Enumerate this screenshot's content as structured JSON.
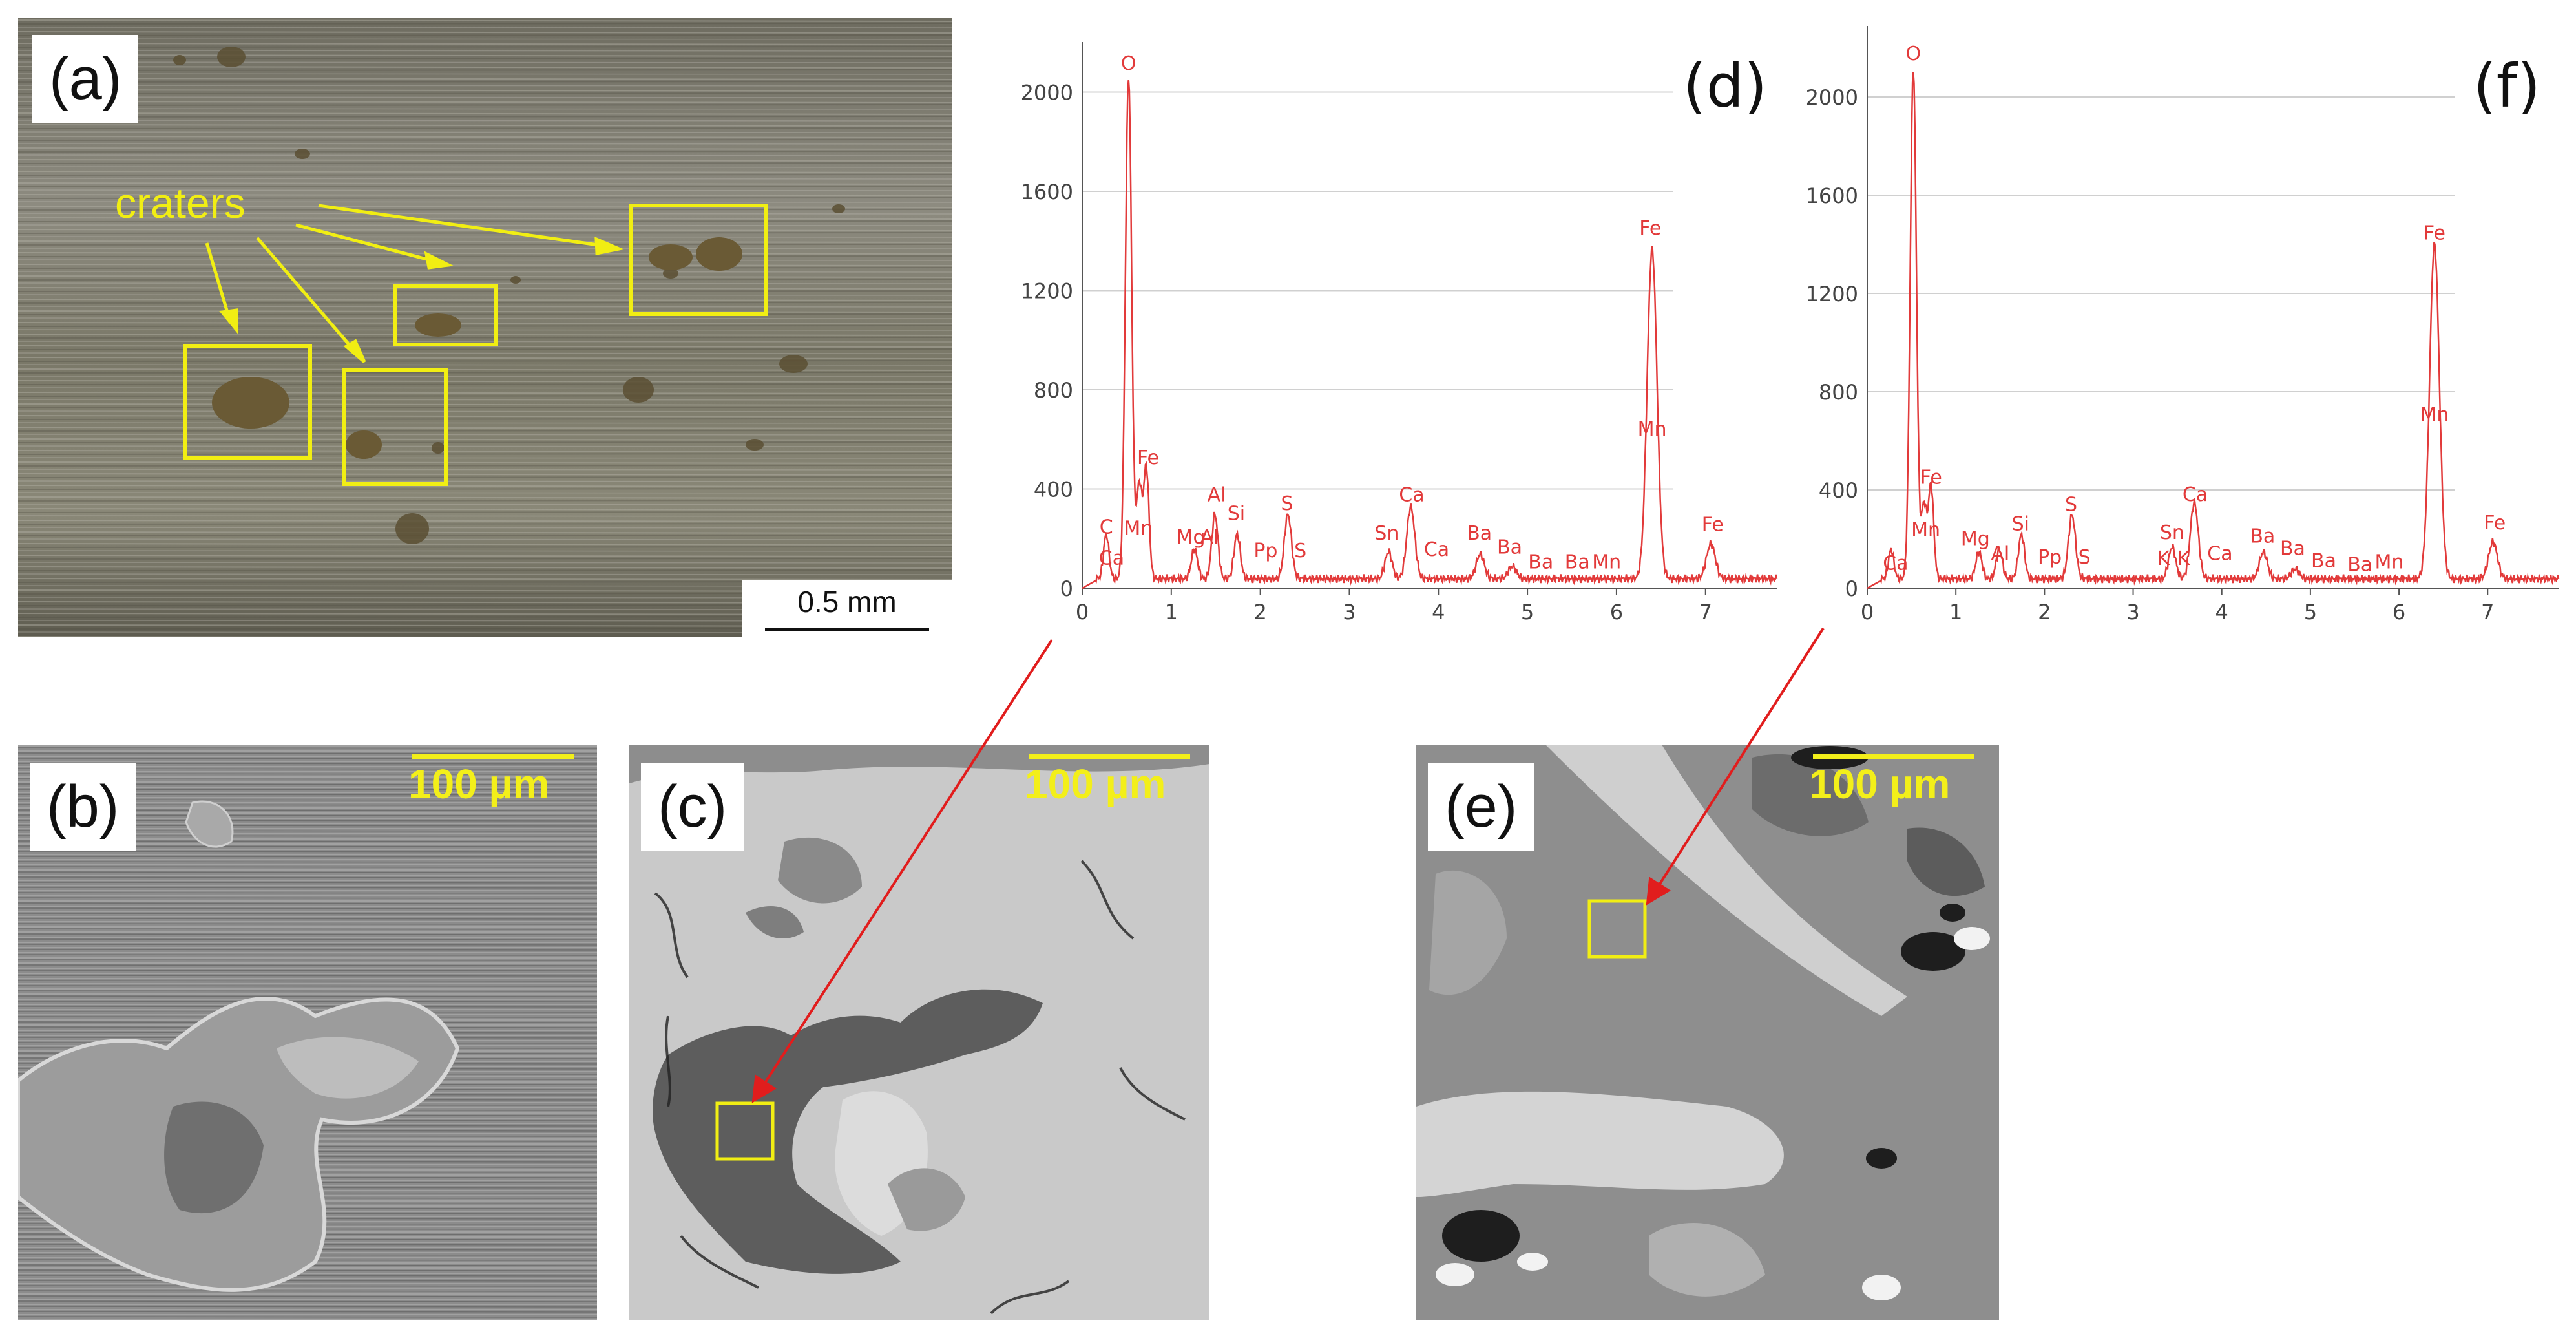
{
  "figure": {
    "panel_a": {
      "label": "(a)",
      "annotation": "craters",
      "scalebar": "0.5 mm",
      "colors": {
        "boxes": "#f1ee13",
        "annotation": "#f1ee13"
      }
    },
    "panel_b": {
      "label": "(b)",
      "scalebar": "100 µm"
    },
    "panel_c": {
      "label": "(c)",
      "scalebar": "100 µm"
    },
    "panel_e": {
      "label": "(e)",
      "scalebar": "100 µm"
    }
  },
  "chart_data": [
    {
      "type": "line",
      "panel_label": "(d)",
      "color": "#e23a3a",
      "xlim": [
        0,
        7.8
      ],
      "ylim": [
        0,
        2150
      ],
      "xticks": [
        0,
        1,
        2,
        3,
        4,
        5,
        6,
        7
      ],
      "yticks": [
        0,
        400,
        800,
        1200,
        1600,
        2000
      ],
      "peaks": [
        {
          "x": 0.27,
          "y": 180,
          "w": 0.03
        },
        {
          "x": 0.52,
          "y": 2030,
          "w": 0.035
        },
        {
          "x": 0.64,
          "y": 380,
          "w": 0.03
        },
        {
          "x": 0.72,
          "y": 450,
          "w": 0.03
        },
        {
          "x": 1.26,
          "y": 120,
          "w": 0.035
        },
        {
          "x": 1.49,
          "y": 260,
          "w": 0.035
        },
        {
          "x": 1.74,
          "y": 180,
          "w": 0.035
        },
        {
          "x": 2.31,
          "y": 260,
          "w": 0.04
        },
        {
          "x": 3.44,
          "y": 110,
          "w": 0.04
        },
        {
          "x": 3.69,
          "y": 290,
          "w": 0.045
        },
        {
          "x": 4.47,
          "y": 100,
          "w": 0.045
        },
        {
          "x": 4.83,
          "y": 50,
          "w": 0.045
        },
        {
          "x": 6.4,
          "y": 1330,
          "w": 0.055
        },
        {
          "x": 7.06,
          "y": 140,
          "w": 0.05
        }
      ],
      "labels": [
        {
          "text": "O",
          "x": 0.52,
          "y": 2090
        },
        {
          "text": "C",
          "x": 0.27,
          "y": 220
        },
        {
          "text": "Ca",
          "x": 0.33,
          "y": 95
        },
        {
          "text": "Mn",
          "x": 0.63,
          "y": 215
        },
        {
          "text": "Fe",
          "x": 0.74,
          "y": 500
        },
        {
          "text": "Mg",
          "x": 1.22,
          "y": 180
        },
        {
          "text": "Al",
          "x": 1.51,
          "y": 350
        },
        {
          "text": "Al",
          "x": 1.43,
          "y": 180
        },
        {
          "text": "Si",
          "x": 1.73,
          "y": 275
        },
        {
          "text": "Pp",
          "x": 2.06,
          "y": 125
        },
        {
          "text": "S",
          "x": 2.3,
          "y": 315
        },
        {
          "text": "S",
          "x": 2.45,
          "y": 125
        },
        {
          "text": "Sn",
          "x": 3.42,
          "y": 195
        },
        {
          "text": "Ca",
          "x": 3.7,
          "y": 350
        },
        {
          "text": "Ca",
          "x": 3.98,
          "y": 130
        },
        {
          "text": "Ba",
          "x": 4.46,
          "y": 195
        },
        {
          "text": "Ba",
          "x": 4.8,
          "y": 140
        },
        {
          "text": "Ba",
          "x": 5.15,
          "y": 80
        },
        {
          "text": "Ba",
          "x": 5.56,
          "y": 80
        },
        {
          "text": "Mn",
          "x": 5.89,
          "y": 80
        },
        {
          "text": "Fe",
          "x": 6.38,
          "y": 1425
        },
        {
          "text": "Mn",
          "x": 6.4,
          "y": 615
        },
        {
          "text": "Fe",
          "x": 7.08,
          "y": 230
        }
      ]
    },
    {
      "type": "line",
      "panel_label": "(f)",
      "color": "#e23a3a",
      "xlim": [
        0,
        7.8
      ],
      "ylim": [
        0,
        2250
      ],
      "xticks": [
        0,
        1,
        2,
        3,
        4,
        5,
        6,
        7
      ],
      "yticks": [
        0,
        400,
        800,
        1200,
        1600,
        2000
      ],
      "peaks": [
        {
          "x": 0.27,
          "y": 120,
          "w": 0.03
        },
        {
          "x": 0.52,
          "y": 2080,
          "w": 0.035
        },
        {
          "x": 0.64,
          "y": 300,
          "w": 0.03
        },
        {
          "x": 0.72,
          "y": 380,
          "w": 0.03
        },
        {
          "x": 1.26,
          "y": 110,
          "w": 0.035
        },
        {
          "x": 1.49,
          "y": 120,
          "w": 0.035
        },
        {
          "x": 1.74,
          "y": 180,
          "w": 0.035
        },
        {
          "x": 2.31,
          "y": 260,
          "w": 0.04
        },
        {
          "x": 3.44,
          "y": 130,
          "w": 0.04
        },
        {
          "x": 3.69,
          "y": 310,
          "w": 0.045
        },
        {
          "x": 4.47,
          "y": 110,
          "w": 0.045
        },
        {
          "x": 4.83,
          "y": 40,
          "w": 0.045
        },
        {
          "x": 6.4,
          "y": 1360,
          "w": 0.055
        },
        {
          "x": 7.06,
          "y": 150,
          "w": 0.05
        }
      ],
      "labels": [
        {
          "text": "O",
          "x": 0.52,
          "y": 2150
        },
        {
          "text": "Ca",
          "x": 0.32,
          "y": 75
        },
        {
          "text": "Mn",
          "x": 0.66,
          "y": 210
        },
        {
          "text": "Fe",
          "x": 0.72,
          "y": 425
        },
        {
          "text": "Mg",
          "x": 1.22,
          "y": 175
        },
        {
          "text": "Al",
          "x": 1.5,
          "y": 115
        },
        {
          "text": "Si",
          "x": 1.73,
          "y": 235
        },
        {
          "text": "Pp",
          "x": 2.06,
          "y": 100
        },
        {
          "text": "S",
          "x": 2.3,
          "y": 315
        },
        {
          "text": "S",
          "x": 2.45,
          "y": 100
        },
        {
          "text": "Sn",
          "x": 3.44,
          "y": 200
        },
        {
          "text": "K",
          "x": 3.34,
          "y": 95
        },
        {
          "text": "K",
          "x": 3.57,
          "y": 95
        },
        {
          "text": "Ca",
          "x": 3.7,
          "y": 355
        },
        {
          "text": "Ca",
          "x": 3.98,
          "y": 115
        },
        {
          "text": "Ba",
          "x": 4.46,
          "y": 185
        },
        {
          "text": "Ba",
          "x": 4.8,
          "y": 135
        },
        {
          "text": "Ba",
          "x": 5.15,
          "y": 85
        },
        {
          "text": "Ba",
          "x": 5.56,
          "y": 70
        },
        {
          "text": "Mn",
          "x": 5.89,
          "y": 80
        },
        {
          "text": "Fe",
          "x": 6.4,
          "y": 1420
        },
        {
          "text": "Mn",
          "x": 6.4,
          "y": 680
        },
        {
          "text": "Fe",
          "x": 7.08,
          "y": 240
        }
      ]
    }
  ]
}
